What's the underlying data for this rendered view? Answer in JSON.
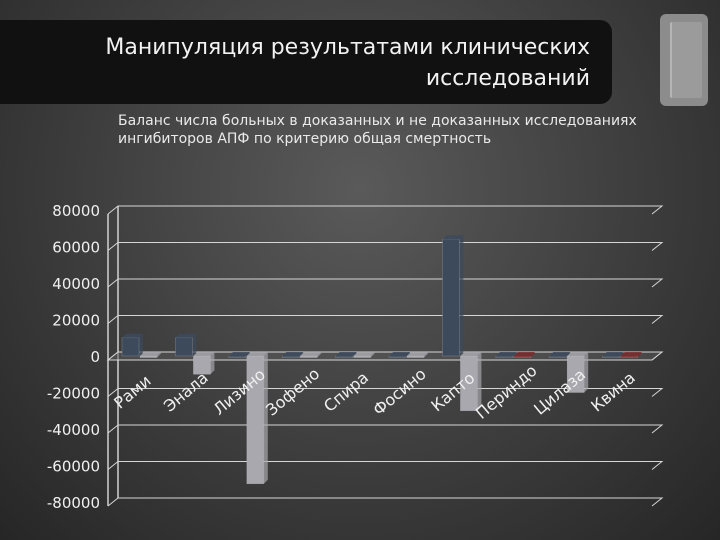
{
  "slide": {
    "title": "Манипуляция результатами клинических исследований",
    "subtitle": "Баланс числа больных в доказанных и не доказанных исследованиях ингибиторов АПФ по критерию общая смертность"
  },
  "colors": {
    "series_dark": "#3c4a5c",
    "series_light": "#a8a8ae",
    "series_red": "#7a2a2a"
  },
  "chart_data": {
    "type": "bar",
    "categories": [
      "Рами",
      "Энала",
      "Лизино",
      "Зофено",
      "Спира",
      "Фосино",
      "Капто",
      "Периндо",
      "Цилаза",
      "Квина"
    ],
    "series": [
      {
        "values": [
          10000,
          10000,
          0,
          0,
          0,
          0,
          64000,
          0,
          0,
          0
        ]
      },
      {
        "values": [
          0,
          -10000,
          -70000,
          0,
          0,
          0,
          -30000,
          0,
          -20000,
          0
        ]
      }
    ],
    "ylim": [
      -80000,
      80000
    ],
    "yticks": [
      "80000",
      "60000",
      "40000",
      "20000",
      "0",
      "-20000",
      "-40000",
      "-60000",
      "-80000"
    ],
    "grid": true,
    "legend": "none"
  }
}
